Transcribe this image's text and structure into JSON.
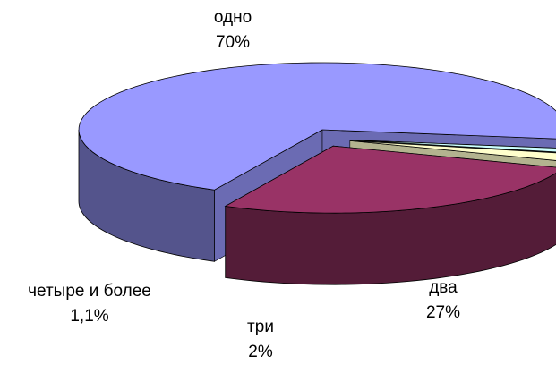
{
  "chart_data": {
    "type": "pie",
    "style": "3d-exploded",
    "slices": [
      {
        "label": "одно",
        "value": 70,
        "value_label": "70%",
        "color": "#9999ff",
        "exploded": false
      },
      {
        "label": "два",
        "value": 27,
        "value_label": "27%",
        "color": "#993366",
        "exploded": true
      },
      {
        "label": "три",
        "value": 2,
        "value_label": "2%",
        "color": "#ffffcc",
        "exploded": true
      },
      {
        "label": "четыре и более",
        "value": 1.1,
        "value_label": "1,1%",
        "color": "#ccffff",
        "exploded": true
      }
    ],
    "legend": "none"
  }
}
